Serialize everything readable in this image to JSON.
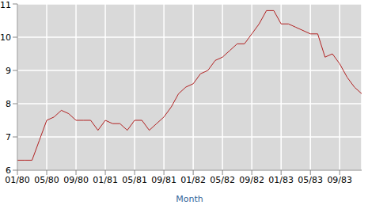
{
  "chart_data": {
    "type": "line",
    "xlabel": "Month",
    "categories": [
      "01/80",
      null,
      null,
      null,
      "05/80",
      null,
      null,
      null,
      "09/80",
      null,
      null,
      null,
      "01/81",
      null,
      null,
      null,
      "05/81",
      null,
      null,
      null,
      "09/81",
      null,
      null,
      null,
      "01/82",
      null,
      null,
      null,
      "05/82",
      null,
      null,
      null,
      "09/82",
      null,
      null,
      null,
      "01/83",
      null,
      null,
      null,
      "05/83",
      null,
      null,
      null,
      "09/83",
      null,
      null,
      null
    ],
    "values": [
      6.3,
      6.3,
      6.3,
      6.9,
      7.5,
      7.6,
      7.8,
      7.7,
      7.5,
      7.5,
      7.5,
      7.2,
      7.5,
      7.4,
      7.4,
      7.2,
      7.5,
      7.5,
      7.2,
      7.4,
      7.6,
      7.9,
      8.3,
      8.5,
      8.6,
      8.9,
      9.0,
      9.3,
      9.4,
      9.6,
      9.8,
      9.8,
      10.1,
      10.4,
      10.8,
      10.8,
      10.4,
      10.4,
      10.3,
      10.2,
      10.1,
      10.1,
      9.4,
      9.5,
      9.2,
      8.8,
      8.5,
      8.3
    ],
    "color": "#b22222",
    "ylim": [
      6,
      11
    ],
    "yticks": [
      6,
      7,
      8,
      9,
      10,
      11
    ],
    "grid": true
  }
}
